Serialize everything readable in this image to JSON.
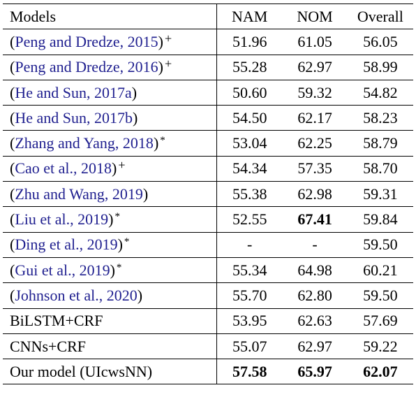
{
  "headers": {
    "model": "Models",
    "nam": "NAM",
    "nom": "NOM",
    "overall": "Overall"
  },
  "rows": [
    {
      "open": "(",
      "cite": "Peng and Dredze, 2015",
      "close": ")",
      "mark": "+",
      "nam": "51.96",
      "nom": "61.05",
      "overall": "56.05"
    },
    {
      "open": "(",
      "cite": "Peng and Dredze, 2016",
      "close": ")",
      "mark": "+",
      "nam": "55.28",
      "nom": "62.97",
      "overall": "58.99"
    },
    {
      "open": "(",
      "cite": "He and Sun, 2017a",
      "close": ")",
      "mark": "",
      "nam": "50.60",
      "nom": "59.32",
      "overall": "54.82"
    },
    {
      "open": "(",
      "cite": "He and Sun, 2017b",
      "close": ")",
      "mark": "",
      "nam": "54.50",
      "nom": "62.17",
      "overall": "58.23"
    },
    {
      "open": "(",
      "cite": "Zhang and Yang, 2018",
      "close": ")",
      "mark": "*",
      "nam": "53.04",
      "nom": "62.25",
      "overall": "58.79"
    },
    {
      "open": "(",
      "cite": "Cao et al., 2018",
      "close": ")",
      "mark": "+",
      "nam": "54.34",
      "nom": "57.35",
      "overall": "58.70"
    },
    {
      "open": "(",
      "cite": "Zhu and Wang, 2019",
      "close": ")",
      "mark": "",
      "nam": "55.38",
      "nom": "62.98",
      "overall": "59.31"
    },
    {
      "open": "(",
      "cite": "Liu et al., 2019",
      "close": ")",
      "mark": "*",
      "nam": "52.55",
      "nom": "67.41",
      "overall": "59.84"
    },
    {
      "open": "(",
      "cite": "Ding et al., 2019",
      "close": ")",
      "mark": "*",
      "nam": "-",
      "nom": "-",
      "overall": "59.50"
    },
    {
      "open": "(",
      "cite": "Gui et al., 2019",
      "close": ")",
      "mark": "*",
      "nam": "55.34",
      "nom": "64.98",
      "overall": "60.21"
    },
    {
      "open": "(",
      "cite": "Johnson et al., 2020",
      "close": ")",
      "mark": "",
      "nam": "55.70",
      "nom": "62.80",
      "overall": "59.50"
    },
    {
      "plain": "BiLSTM+CRF",
      "nam": "53.95",
      "nom": "62.63",
      "overall": "57.69"
    },
    {
      "plain": "CNNs+CRF",
      "nam": "55.07",
      "nom": "62.97",
      "overall": "59.22"
    },
    {
      "plain": "Our model (UIcwsNN)",
      "nam": "57.58",
      "nom": "65.97",
      "overall": "62.07"
    }
  ]
}
